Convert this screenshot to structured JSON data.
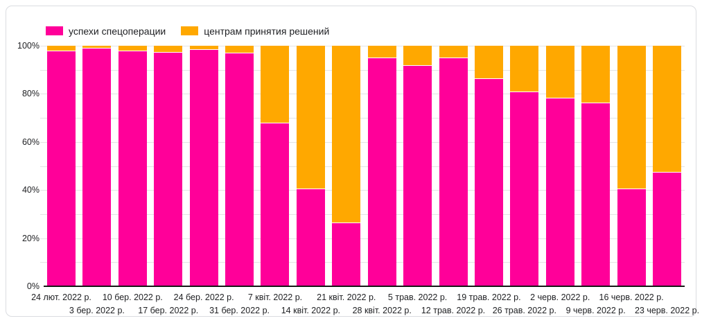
{
  "card": {
    "background": "#ffffff",
    "border_color": "#dadce0"
  },
  "chart_data": {
    "type": "bar",
    "subtype": "100-percent-stacked-column",
    "title": "",
    "legend_position": "top",
    "grid": true,
    "gridline_color": "#e3e3e3",
    "axis_line_color": "#161616",
    "label_color": "#202124",
    "categories": [
      "24 лют. 2022 р.",
      "3 бер. 2022 р.",
      "10 бер. 2022 р.",
      "17 бер. 2022 р.",
      "24 бер. 2022 р.",
      "31 бер. 2022 р.",
      "7 квіт. 2022 р.",
      "14 квіт. 2022 р.",
      "21 квіт. 2022 р.",
      "28 квіт. 2022 р.",
      "5 трав. 2022 р.",
      "12 трав. 2022 р.",
      "19 трав. 2022 р.",
      "26 трав. 2022 р.",
      "2 черв. 2022 р.",
      "9 черв. 2022 р.",
      "16 черв. 2022 р.",
      "23 черв. 2022 р."
    ],
    "series": [
      {
        "name": "успехи спецоперации",
        "color": "#ff0099",
        "values": [
          98,
          99,
          98,
          97.5,
          98.5,
          97,
          68,
          40.5,
          26.5,
          95,
          92,
          95,
          86.5,
          81,
          78.5,
          76.5,
          40.5,
          47.5
        ]
      },
      {
        "name": "центрам принятия решений",
        "color": "#ffa800",
        "values": [
          2,
          1,
          2,
          2.5,
          1.5,
          3,
          32,
          59.5,
          73.5,
          5,
          8,
          5,
          13.5,
          19,
          21.5,
          23.5,
          59.5,
          52.5
        ]
      }
    ],
    "y_axis": {
      "ticks": [
        "0%",
        "20%",
        "40%",
        "60%",
        "80%",
        "100%"
      ],
      "tick_values": [
        0,
        20,
        40,
        60,
        80,
        100
      ],
      "min": 0,
      "max": 100,
      "minor_step": 10
    }
  }
}
